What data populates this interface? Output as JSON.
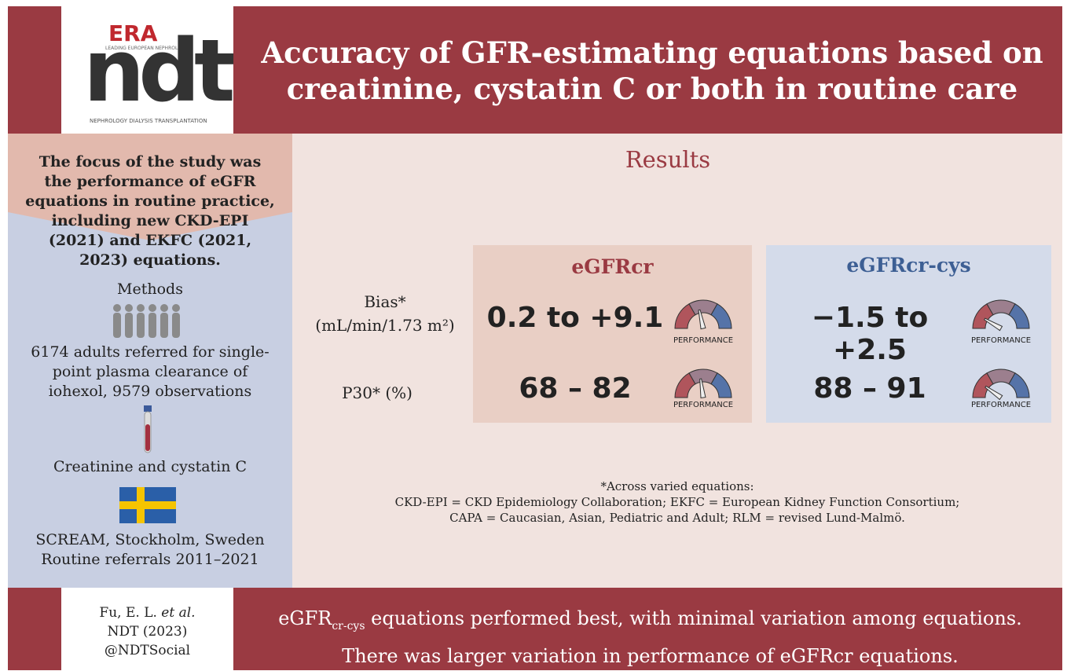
{
  "header": {
    "logo_brand": "ERA",
    "logo_tagline": "LEADING EUROPEAN NEPHROLOGY",
    "logo_main": "ndt",
    "logo_footer": "NEPHROLOGY DIALYSIS TRANSPLANTATION",
    "title": "Accuracy of GFR-estimating equations based on creatinine, cystatin C or both in routine care"
  },
  "sidebar": {
    "focus": "The focus of the study was the performance of eGFR equations in routine practice, including new CKD-EPI (2021) and EKFC (2021, 2023) equations.",
    "methods_heading": "Methods",
    "population": "6174 adults referred for single-point plasma clearance of iohexol, 9579 observations",
    "samples": "Creatinine and cystatin C",
    "setting": [
      "SCREAM, Stockholm, Sweden",
      "Routine referrals 2011–2021"
    ]
  },
  "results": {
    "heading": "Results",
    "row_labels": [
      [
        "Bias*",
        "(mL/min/1.73 m²)"
      ],
      [
        "P30* (%)"
      ]
    ],
    "panels": [
      {
        "title": "eGFRcr",
        "values": [
          "0.2 to +9.1",
          "68 – 82"
        ],
        "gauge_labels": [
          "PERFORMANCE",
          "PERFORMANCE"
        ]
      },
      {
        "title": "eGFRcr-cys",
        "values": [
          "−1.5 to +2.5",
          "88 – 91"
        ],
        "gauge_labels": [
          "PERFORMANCE",
          "PERFORMANCE"
        ]
      }
    ],
    "footnote": [
      "*Across varied equations:",
      "CKD-EPI = CKD Epidemiology Collaboration; EKFC = European Kidney Function Consortium;",
      "CAPA = Caucasian, Asian, Pediatric and Adult; RLM = revised Lund-Malmö."
    ]
  },
  "footer": {
    "citation_authors": "Fu, E. L. ",
    "citation_etal": "et al.",
    "citation_journal": "NDT (2023)",
    "citation_handle": "@NDTSocial",
    "conclusion_prefix": "eGFR",
    "conclusion_subscript": "cr-cys",
    "conclusion_line1": " equations performed best, with minimal variation among equations.",
    "conclusion_line2": "There was larger variation in performance of eGFRcr equations."
  }
}
